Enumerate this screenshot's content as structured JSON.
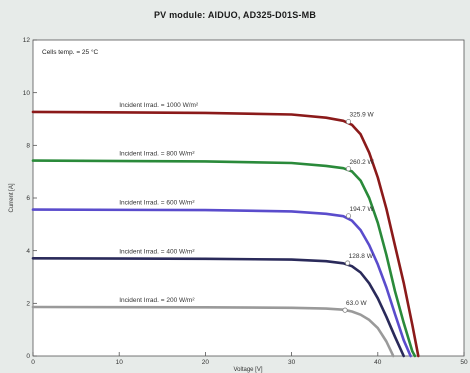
{
  "chart_data": {
    "type": "line",
    "title": "PV module:  AIDUO,  AD325-D01S-MB",
    "xlabel": "Voltage [V]",
    "ylabel": "Current [A]",
    "xlim": [
      0,
      50
    ],
    "ylim": [
      0,
      12
    ],
    "x_ticks": [
      0,
      10,
      20,
      30,
      40,
      50
    ],
    "y_ticks": [
      0,
      2,
      4,
      6,
      8,
      10,
      12
    ],
    "annotation": "Cells temp. = 25 °C",
    "grid": false,
    "series": [
      {
        "name": "Incident Irrad. = 1000 W/m²",
        "color": "#8b1a1a",
        "isc": 9.27,
        "voc": 44.7,
        "x": [
          0,
          20,
          30,
          34,
          36,
          37,
          38,
          39,
          40,
          41,
          42,
          43,
          44,
          44.7
        ],
        "y": [
          9.27,
          9.23,
          9.17,
          9.05,
          8.93,
          8.78,
          8.42,
          7.72,
          6.78,
          5.59,
          4.19,
          2.78,
          1.19,
          0
        ],
        "mpp": {
          "v": 36.6,
          "i": 8.9,
          "label": "325.9 W"
        }
      },
      {
        "name": "Incident Irrad. = 800 W/m²",
        "color": "#2a8a3a",
        "isc": 7.42,
        "voc": 44.3,
        "x": [
          0,
          20,
          30,
          34,
          36,
          37,
          38,
          39,
          40,
          41,
          42,
          43,
          44,
          44.3
        ],
        "y": [
          7.42,
          7.39,
          7.33,
          7.22,
          7.13,
          7.01,
          6.66,
          6.0,
          5.06,
          3.84,
          2.46,
          1.26,
          0.18,
          0
        ],
        "mpp": {
          "v": 36.6,
          "i": 7.11,
          "label": "260.2 W"
        }
      },
      {
        "name": "Incident Irrad. = 600 W/m²",
        "color": "#5a4ccc",
        "isc": 5.56,
        "voc": 43.8,
        "x": [
          0,
          20,
          30,
          34,
          36,
          37,
          38,
          39,
          40,
          41,
          42,
          43,
          43.8
        ],
        "y": [
          5.56,
          5.54,
          5.49,
          5.4,
          5.31,
          5.14,
          4.78,
          4.21,
          3.48,
          2.6,
          1.59,
          0.6,
          0
        ],
        "mpp": {
          "v": 36.6,
          "i": 5.32,
          "label": "194.7 W"
        }
      },
      {
        "name": "Incident Irrad. = 400 W/m²",
        "color": "#2a2a5a",
        "isc": 3.71,
        "voc": 43.0,
        "x": [
          0,
          20,
          30,
          34,
          36,
          37,
          38,
          39,
          40,
          41,
          42,
          43
        ],
        "y": [
          3.71,
          3.69,
          3.66,
          3.6,
          3.52,
          3.41,
          3.17,
          2.76,
          2.19,
          1.49,
          0.73,
          0
        ],
        "mpp": {
          "v": 36.5,
          "i": 3.53,
          "label": "128.8 W"
        }
      },
      {
        "name": "Incident Irrad. = 200 W/m²",
        "color": "#9a9a9a",
        "isc": 1.86,
        "voc": 41.8,
        "x": [
          0,
          20,
          30,
          34,
          36,
          37,
          38,
          39,
          40,
          41,
          41.8
        ],
        "y": [
          1.86,
          1.85,
          1.83,
          1.8,
          1.76,
          1.69,
          1.57,
          1.37,
          1.06,
          0.55,
          0
        ],
        "mpp": {
          "v": 36.2,
          "i": 1.74,
          "label": "63.0 W"
        }
      }
    ]
  }
}
